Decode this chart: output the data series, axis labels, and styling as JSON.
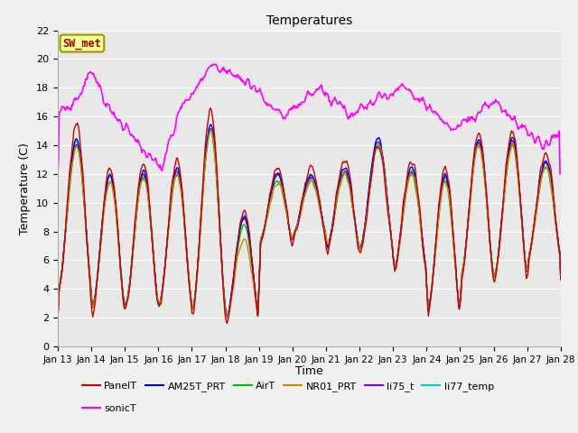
{
  "title": "Temperatures",
  "xlabel": "Time",
  "ylabel": "Temperature (C)",
  "annotation": "SW_met",
  "ylim": [
    0,
    22
  ],
  "series": {
    "PanelT": {
      "color": "#cc0000",
      "lw": 1.0
    },
    "AM25T_PRT": {
      "color": "#0000cc",
      "lw": 1.0
    },
    "AirT": {
      "color": "#00bb00",
      "lw": 1.0
    },
    "NR01_PRT": {
      "color": "#cc8800",
      "lw": 1.0
    },
    "li75_t": {
      "color": "#8800cc",
      "lw": 1.0
    },
    "li77_temp": {
      "color": "#00cccc",
      "lw": 1.0
    },
    "sonicT": {
      "color": "#ff00ff",
      "lw": 1.2
    }
  },
  "legend_order": [
    "PanelT",
    "AM25T_PRT",
    "AirT",
    "NR01_PRT",
    "li75_t",
    "li77_temp",
    "sonicT"
  ],
  "tick_labels": [
    "Jan 13",
    "Jan 14",
    "Jan 15",
    "Jan 16",
    "Jan 17",
    "Jan 18",
    "Jan 19",
    "Jan 20",
    "Jan 21",
    "Jan 22",
    "Jan 23",
    "Jan 24",
    "Jan 25",
    "Jan 26",
    "Jan 27",
    "Jan 28"
  ],
  "yticks": [
    0,
    2,
    4,
    6,
    8,
    10,
    12,
    14,
    16,
    18,
    20,
    22
  ],
  "annotation_box_color": "#ffff99",
  "annotation_text_color": "#990000",
  "annotation_border_color": "#999900",
  "fig_bg": "#f0f0f0",
  "ax_bg": "#e8e8e8",
  "grid_color": "#ffffff"
}
